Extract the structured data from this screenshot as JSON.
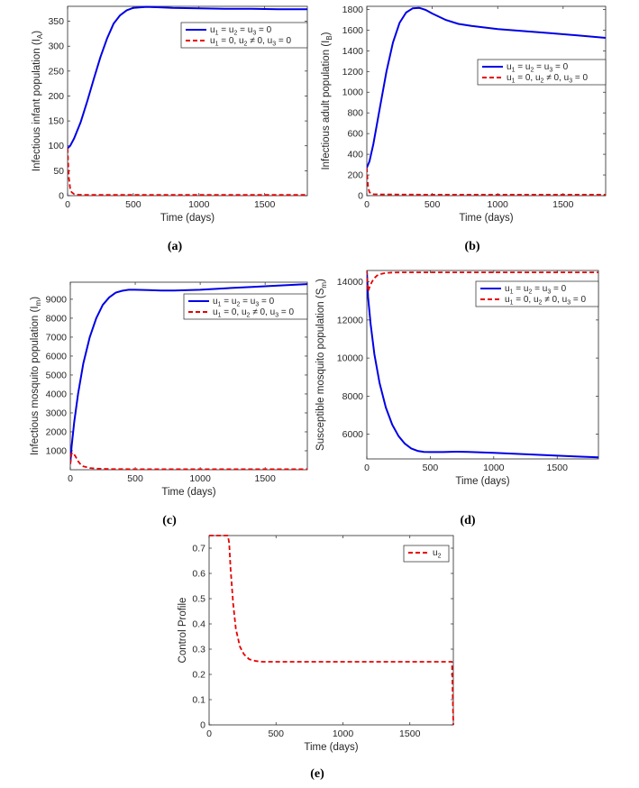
{
  "colors": {
    "solid": "#0000e6",
    "dashed": "#e60000",
    "axis": "#262626"
  },
  "chart_data": [
    {
      "id": "a",
      "type": "line",
      "caption": "(a)",
      "xlabel": "Time (days)",
      "ylabel": {
        "text": "Infectious infant population (I",
        "sub": "A",
        "close": ")"
      },
      "xlim": [
        0,
        1825
      ],
      "ylim": [
        0,
        380
      ],
      "xticks": [
        "0",
        "500",
        "1000",
        "1500"
      ],
      "xtick_values": [
        0,
        500,
        1000,
        1500
      ],
      "yticks": [
        "0",
        "50",
        "100",
        "150",
        "200",
        "250",
        "300",
        "350"
      ],
      "ytick_values": [
        0,
        50,
        100,
        150,
        200,
        250,
        300,
        350
      ],
      "legend_position": "top-right",
      "series": [
        {
          "name": "u1 = u2 = u3 = 0",
          "style": "solid",
          "x": [
            0,
            20,
            50,
            100,
            150,
            200,
            250,
            300,
            350,
            400,
            450,
            500,
            600,
            700,
            800,
            1000,
            1200,
            1400,
            1600,
            1825
          ],
          "y": [
            95,
            100,
            115,
            148,
            190,
            235,
            278,
            315,
            345,
            362,
            372,
            377,
            379,
            378,
            377,
            376,
            375,
            375,
            374,
            374
          ]
        },
        {
          "name": "u1 = 0, u2 ≠ 0, u3 = 0",
          "style": "dashed",
          "x": [
            0,
            5,
            10,
            20,
            30,
            50,
            80,
            150,
            300,
            600,
            1000,
            1500,
            1825
          ],
          "y": [
            95,
            62,
            35,
            14,
            7,
            3,
            2,
            1.5,
            1.5,
            1.5,
            1.5,
            1.5,
            1.5
          ]
        }
      ],
      "legend": [
        {
          "parts": [
            [
              "u",
              ""
            ],
            [
              "1",
              "sub"
            ],
            [
              " = u",
              ""
            ],
            [
              "2",
              "sub"
            ],
            [
              " = u",
              ""
            ],
            [
              "3",
              "sub"
            ],
            [
              " = 0",
              ""
            ]
          ]
        },
        {
          "parts": [
            [
              "u",
              ""
            ],
            [
              "1",
              "sub"
            ],
            [
              " = 0, u",
              ""
            ],
            [
              "2",
              "sub"
            ],
            [
              " ≠ 0, u",
              ""
            ],
            [
              "3",
              "sub"
            ],
            [
              " = 0",
              ""
            ]
          ]
        }
      ]
    },
    {
      "id": "b",
      "type": "line",
      "caption": "(b)",
      "xlabel": "Time (days)",
      "ylabel": {
        "text": "Infectious adult population (I",
        "sub": "B",
        "close": ")"
      },
      "xlim": [
        0,
        1825
      ],
      "ylim": [
        0,
        1830
      ],
      "xticks": [
        "0",
        "500",
        "1000",
        "1500"
      ],
      "xtick_values": [
        0,
        500,
        1000,
        1500
      ],
      "yticks": [
        "0",
        "200",
        "400",
        "600",
        "800",
        "1000",
        "1200",
        "1400",
        "1600",
        "1800"
      ],
      "ytick_values": [
        0,
        200,
        400,
        600,
        800,
        1000,
        1200,
        1400,
        1600,
        1800
      ],
      "legend_position": "right",
      "series": [
        {
          "name": "u1 = u2 = u3 = 0",
          "style": "solid",
          "x": [
            0,
            20,
            50,
            100,
            150,
            200,
            250,
            300,
            350,
            400,
            450,
            500,
            600,
            700,
            800,
            1000,
            1200,
            1400,
            1600,
            1825
          ],
          "y": [
            270,
            330,
            500,
            850,
            1200,
            1480,
            1670,
            1770,
            1810,
            1815,
            1795,
            1760,
            1700,
            1660,
            1640,
            1610,
            1590,
            1570,
            1550,
            1525
          ]
        },
        {
          "name": "u1 = 0, u2 ≠ 0, u3 = 0",
          "style": "dashed",
          "x": [
            0,
            5,
            10,
            20,
            30,
            50,
            100,
            200,
            500,
            1000,
            1500,
            1825
          ],
          "y": [
            270,
            160,
            80,
            35,
            20,
            14,
            12,
            11,
            10,
            10,
            10,
            10
          ]
        }
      ],
      "legend": [
        {
          "parts": [
            [
              "u",
              ""
            ],
            [
              "1",
              "sub"
            ],
            [
              " = u",
              ""
            ],
            [
              "2",
              "sub"
            ],
            [
              " = u",
              ""
            ],
            [
              "3",
              "sub"
            ],
            [
              " = 0",
              ""
            ]
          ]
        },
        {
          "parts": [
            [
              "u",
              ""
            ],
            [
              "1",
              "sub"
            ],
            [
              " = 0, u",
              ""
            ],
            [
              "2",
              "sub"
            ],
            [
              " ≠ 0, u",
              ""
            ],
            [
              "3",
              "sub"
            ],
            [
              " = 0",
              ""
            ]
          ]
        }
      ]
    },
    {
      "id": "c",
      "type": "line",
      "caption": "(c)",
      "xlabel": "Time (days)",
      "ylabel": {
        "text": "Infectious mosquito population (I",
        "sub": "m",
        "close": ")"
      },
      "xlim": [
        0,
        1825
      ],
      "ylim": [
        0,
        9900
      ],
      "xticks": [
        "0",
        "500",
        "1000",
        "1500"
      ],
      "xtick_values": [
        0,
        500,
        1000,
        1500
      ],
      "yticks": [
        "1000",
        "2000",
        "3000",
        "4000",
        "5000",
        "6000",
        "7000",
        "8000",
        "9000"
      ],
      "ytick_values": [
        1000,
        2000,
        3000,
        4000,
        5000,
        6000,
        7000,
        8000,
        9000
      ],
      "legend_position": "top-right",
      "series": [
        {
          "name": "u1 = u2 = u3 = 0",
          "style": "solid",
          "x": [
            0,
            10,
            30,
            60,
            100,
            150,
            200,
            250,
            300,
            350,
            400,
            450,
            500,
            600,
            700,
            800,
            1000,
            1200,
            1400,
            1600,
            1825
          ],
          "y": [
            300,
            1200,
            2500,
            4000,
            5600,
            7000,
            8000,
            8700,
            9100,
            9350,
            9450,
            9500,
            9500,
            9480,
            9460,
            9460,
            9500,
            9580,
            9650,
            9720,
            9800
          ]
        },
        {
          "name": "u1 = 0, u2 ≠ 0, u3 = 0",
          "style": "dashed",
          "x": [
            0,
            10,
            20,
            40,
            60,
            80,
            100,
            150,
            200,
            300,
            500,
            1000,
            1500,
            1825
          ],
          "y": [
            300,
            850,
            900,
            700,
            450,
            280,
            180,
            90,
            60,
            40,
            30,
            30,
            30,
            30
          ]
        }
      ],
      "legend": [
        {
          "parts": [
            [
              "u",
              ""
            ],
            [
              "1",
              "sub"
            ],
            [
              " = u",
              ""
            ],
            [
              "2",
              "sub"
            ],
            [
              " = u",
              ""
            ],
            [
              "3",
              "sub"
            ],
            [
              " = 0",
              ""
            ]
          ]
        },
        {
          "parts": [
            [
              "u",
              ""
            ],
            [
              "1",
              "sub"
            ],
            [
              " = 0, u",
              ""
            ],
            [
              "2",
              "sub"
            ],
            [
              " ≠ 0, u",
              ""
            ],
            [
              "3",
              "sub"
            ],
            [
              " = 0",
              ""
            ]
          ]
        }
      ]
    },
    {
      "id": "d",
      "type": "line",
      "caption": "(d)",
      "xlabel": "Time (days)",
      "ylabel": {
        "text": "Susceptible mosquito population (S",
        "sub": "m",
        "close": ")"
      },
      "xlim": [
        0,
        1825
      ],
      "ylim": [
        4700,
        14600
      ],
      "xticks": [
        "0",
        "500",
        "1000",
        "1500"
      ],
      "xtick_values": [
        0,
        500,
        1000,
        1500
      ],
      "yticks": [
        "6000",
        "8000",
        "10000",
        "12000",
        "14000"
      ],
      "ytick_values": [
        6000,
        8000,
        10000,
        12000,
        14000
      ],
      "legend_position": "top-right",
      "series": [
        {
          "name": "u1 = u2 = u3 = 0",
          "style": "solid",
          "x": [
            0,
            10,
            30,
            60,
            100,
            150,
            200,
            250,
            300,
            350,
            400,
            450,
            500,
            600,
            700,
            800,
            1000,
            1200,
            1400,
            1600,
            1825
          ],
          "y": [
            14600,
            13200,
            11800,
            10200,
            8700,
            7400,
            6500,
            5900,
            5500,
            5250,
            5120,
            5070,
            5060,
            5060,
            5080,
            5070,
            5020,
            4960,
            4900,
            4840,
            4780
          ]
        },
        {
          "name": "u1 = 0, u2 ≠ 0, u3 = 0",
          "style": "dashed",
          "x": [
            0,
            10,
            20,
            40,
            60,
            80,
            100,
            150,
            200,
            300,
            500,
            1000,
            1500,
            1825
          ],
          "y": [
            14600,
            13500,
            13700,
            14000,
            14200,
            14330,
            14400,
            14470,
            14490,
            14500,
            14500,
            14500,
            14500,
            14500
          ]
        }
      ],
      "legend": [
        {
          "parts": [
            [
              "u",
              ""
            ],
            [
              "1",
              "sub"
            ],
            [
              " = u",
              ""
            ],
            [
              "2",
              "sub"
            ],
            [
              " = u",
              ""
            ],
            [
              "3",
              "sub"
            ],
            [
              " = 0",
              ""
            ]
          ]
        },
        {
          "parts": [
            [
              "u",
              ""
            ],
            [
              "1",
              "sub"
            ],
            [
              " = 0, u",
              ""
            ],
            [
              "2",
              "sub"
            ],
            [
              " ≠ 0, u",
              ""
            ],
            [
              "3",
              "sub"
            ],
            [
              " = 0",
              ""
            ]
          ]
        }
      ]
    },
    {
      "id": "e",
      "type": "line",
      "caption": "(e)",
      "xlabel": "Time (days)",
      "ylabel": {
        "text": "Control Profile",
        "sub": "",
        "close": ""
      },
      "xlim": [
        0,
        1825
      ],
      "ylim": [
        0,
        0.75
      ],
      "xticks": [
        "0",
        "500",
        "1000",
        "1500"
      ],
      "xtick_values": [
        0,
        500,
        1000,
        1500
      ],
      "yticks": [
        "0",
        "0.1",
        "0.2",
        "0.3",
        "0.4",
        "0.5",
        "0.6",
        "0.7"
      ],
      "ytick_values": [
        0,
        0.1,
        0.2,
        0.3,
        0.4,
        0.5,
        0.6,
        0.7
      ],
      "legend_position": "top-right",
      "series": [
        {
          "name": "u2",
          "style": "dashed",
          "x": [
            0,
            140,
            150,
            160,
            180,
            200,
            230,
            260,
            300,
            350,
            400,
            500,
            800,
            1200,
            1600,
            1815,
            1820,
            1825
          ],
          "y": [
            0.75,
            0.75,
            0.72,
            0.62,
            0.48,
            0.38,
            0.31,
            0.28,
            0.26,
            0.253,
            0.25,
            0.25,
            0.25,
            0.25,
            0.25,
            0.25,
            0.12,
            0
          ]
        }
      ],
      "legend": [
        {
          "parts": [
            [
              "u",
              ""
            ],
            [
              "2",
              "sub"
            ]
          ]
        }
      ]
    }
  ]
}
